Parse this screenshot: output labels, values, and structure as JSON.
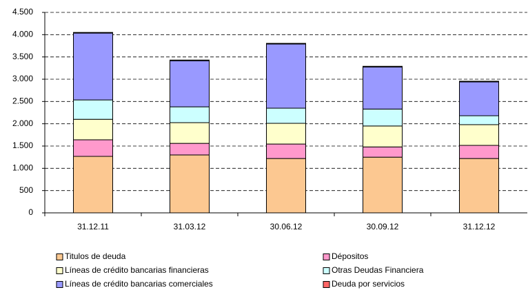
{
  "chart_data": {
    "type": "stacked_bar",
    "categories": [
      "31.12.11",
      "31.03.12",
      "30.06.12",
      "30.09.12",
      "31.12.12"
    ],
    "series": [
      {
        "name": "Titulos de deuda",
        "color": "#fcc891",
        "values": [
          1268,
          1300,
          1220,
          1250,
          1220
        ]
      },
      {
        "name": "Dépositos",
        "color": "#ff99cc",
        "values": [
          372,
          260,
          325,
          230,
          295
        ]
      },
      {
        "name": "Líneas de crédito bancarias financieras",
        "color": "#ffffcc",
        "values": [
          460,
          465,
          465,
          470,
          465
        ]
      },
      {
        "name": "Otras Deudas Financiera",
        "color": "#ccffff",
        "values": [
          435,
          355,
          340,
          380,
          200
        ]
      },
      {
        "name": "Líneas de crédito bancarias comerciales",
        "color": "#9999ff",
        "values": [
          1500,
          1035,
          1440,
          945,
          760
        ]
      },
      {
        "name": "Deuda por servicios",
        "color": "#ff6666",
        "values": [
          15,
          15,
          15,
          15,
          15
        ]
      }
    ],
    "ylim": [
      0,
      4500
    ],
    "yticks": [
      0,
      500,
      {
        "value": 1000,
        "label": "1.000"
      },
      {
        "value": 1500,
        "label": "1.500"
      },
      {
        "value": 2000,
        "label": "2.000"
      },
      {
        "value": 2500,
        "label": "2.500"
      },
      {
        "value": 3000,
        "label": "3.000"
      },
      {
        "value": 3500,
        "label": "3.500"
      },
      {
        "value": 4000,
        "label": "4.000"
      },
      {
        "value": 4500,
        "label": "4.500"
      }
    ],
    "grid": true
  }
}
